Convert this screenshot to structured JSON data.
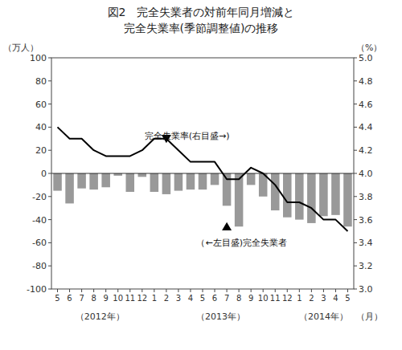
{
  "chart_data": {
    "type": "bar",
    "title": "図2　完全失業者の対前年同月増減と",
    "subtitle": "完全失業率(季節調整値)の推移",
    "y_label": "（万人）",
    "y2_label": "（%）",
    "x_label": "（月）",
    "categories": [
      "5",
      "6",
      "7",
      "8",
      "9",
      "10",
      "11",
      "12",
      "1",
      "2",
      "3",
      "4",
      "5",
      "6",
      "7",
      "8",
      "9",
      "10",
      "11",
      "12",
      "1",
      "2",
      "3",
      "4",
      "5"
    ],
    "x_groups": [
      {
        "label": "（2012年）",
        "position": 3.5
      },
      {
        "label": "（2013年）",
        "position": 13.5
      },
      {
        "label": "（2014年）",
        "position": 22.0
      }
    ],
    "series": [
      {
        "type": "bar",
        "color": "#999999",
        "values": [
          -15,
          -26,
          -13,
          -14,
          -12,
          -2,
          -16,
          -3,
          -16,
          -18,
          -15,
          -14,
          -14,
          -10,
          -28,
          -46,
          -10,
          -20,
          -32,
          -38,
          -40,
          -43,
          -37,
          -36,
          -46
        ]
      },
      {
        "type": "line",
        "axis": "y2",
        "color": "#000000",
        "values": [
          4.4,
          4.3,
          4.3,
          4.2,
          4.15,
          4.15,
          4.15,
          4.2,
          4.3,
          4.3,
          4.2,
          4.1,
          4.1,
          4.1,
          3.95,
          3.95,
          4.05,
          4.0,
          3.9,
          3.75,
          3.75,
          3.7,
          3.6,
          3.6,
          3.5
        ]
      }
    ],
    "ylim": [
      -100,
      100
    ],
    "yticks": [
      -100,
      -80,
      -60,
      -40,
      -20,
      0,
      20,
      40,
      60,
      80,
      100
    ],
    "y2lim": [
      3.0,
      5.0
    ],
    "y2ticks": [
      {
        "value": 3.0,
        "label": "3.0"
      },
      3.2,
      3.4,
      3.6,
      3.8,
      {
        "value": 4.0,
        "label": "4.0"
      },
      4.2,
      4.4,
      4.6,
      4.8,
      {
        "value": 5.0,
        "label": "5.0"
      }
    ],
    "grid": false,
    "markers": [
      {
        "marker": "triangle-down",
        "axis": "y2",
        "x": 9,
        "y": 4.3
      },
      {
        "marker": "triangle-up",
        "axis": "y",
        "x": 14,
        "y": -46
      }
    ],
    "annotations": [
      {
        "text": "完全失業率(右目盛→)",
        "x": 7.2,
        "y": 28,
        "anchor": "bottom"
      },
      {
        "text": "（←左目盛)完全失業者",
        "x": 11.5,
        "y": -55,
        "anchor": "top"
      }
    ]
  }
}
